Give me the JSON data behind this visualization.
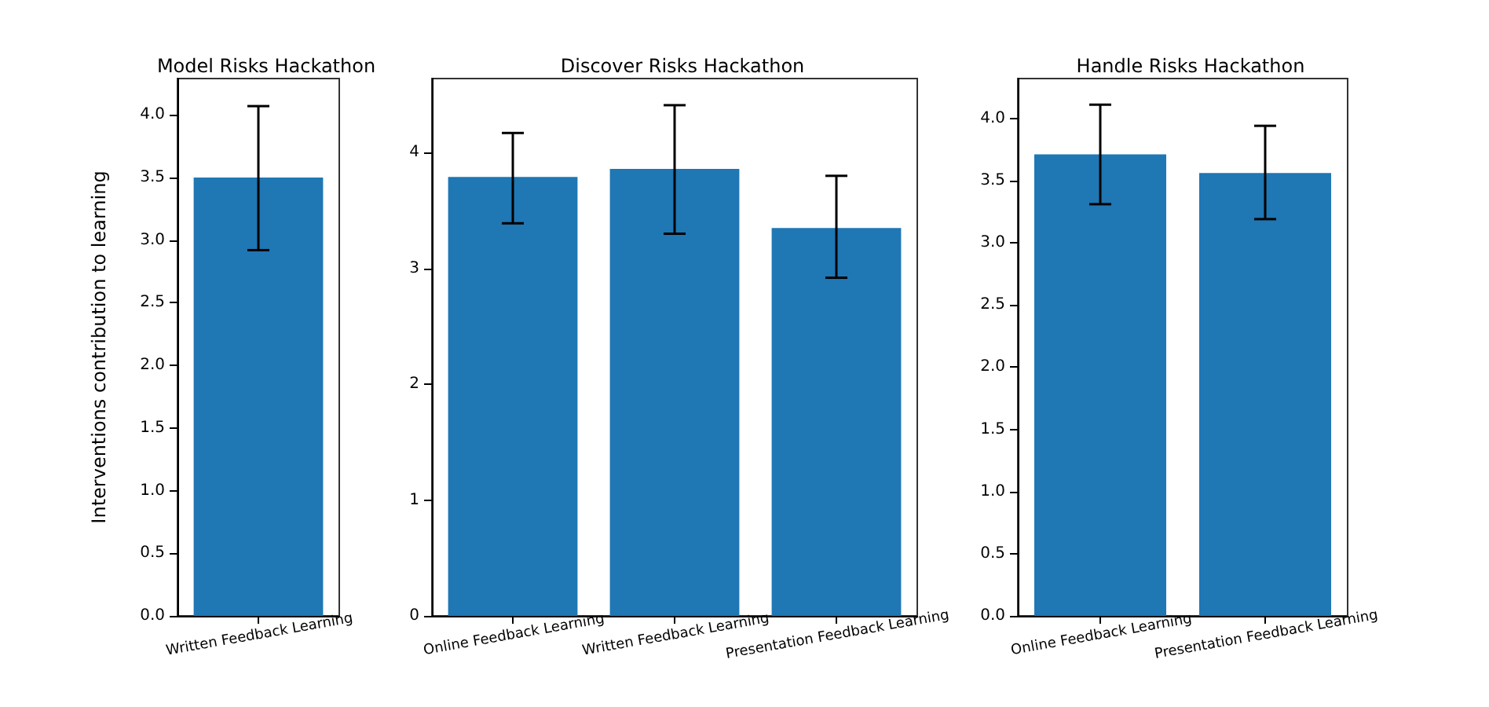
{
  "chart_data": [
    {
      "type": "bar",
      "title": "Model Risks Hackathon",
      "ylabel": "Interventions contribution to learning",
      "categories": [
        "Written Feedback Learning"
      ],
      "values": [
        3.5
      ],
      "errors": [
        [
          2.92,
          4.07
        ]
      ],
      "color": "#1f77b4",
      "ylim": [
        0,
        4.29
      ],
      "yticks": [
        {
          "value": 0,
          "label": "0.0"
        },
        {
          "value": 0.5,
          "label": "0.5"
        },
        {
          "value": 1,
          "label": "1.0"
        },
        {
          "value": 1.5,
          "label": "1.5"
        },
        {
          "value": 2,
          "label": "2.0"
        },
        {
          "value": 2.5,
          "label": "2.5"
        },
        {
          "value": 3,
          "label": "3.0"
        },
        {
          "value": 3.5,
          "label": "3.5"
        },
        {
          "value": 4,
          "label": "4.0"
        }
      ],
      "grid": false
    },
    {
      "type": "bar",
      "title": "Discover Risks Hackathon",
      "categories": [
        "Online Feedback Learning",
        "Written Feedback Learning",
        "Presentation Feedback Learning"
      ],
      "values": [
        3.79,
        3.86,
        3.35
      ],
      "errors": [
        [
          3.39,
          4.17
        ],
        [
          3.3,
          4.41
        ],
        [
          2.92,
          3.8
        ]
      ],
      "color": "#1f77b4",
      "ylim": [
        0,
        4.64
      ],
      "yticks": [
        0,
        1,
        2,
        3,
        4
      ],
      "grid": false
    },
    {
      "type": "bar",
      "title": "Handle Risks Hackathon",
      "categories": [
        "Online Feedback Learning",
        "Presentation Feedback Learning"
      ],
      "values": [
        3.71,
        3.56
      ],
      "errors": [
        [
          3.31,
          4.11
        ],
        [
          3.19,
          3.94
        ]
      ],
      "color": "#1f77b4",
      "ylim": [
        0,
        4.32
      ],
      "yticks": [
        {
          "value": 0,
          "label": "0.0"
        },
        {
          "value": 0.5,
          "label": "0.5"
        },
        {
          "value": 1,
          "label": "1.0"
        },
        {
          "value": 1.5,
          "label": "1.5"
        },
        {
          "value": 2,
          "label": "2.0"
        },
        {
          "value": 2.5,
          "label": "2.5"
        },
        {
          "value": 3,
          "label": "3.0"
        },
        {
          "value": 3.5,
          "label": "3.5"
        },
        {
          "value": 4,
          "label": "4.0"
        }
      ],
      "grid": false
    }
  ]
}
